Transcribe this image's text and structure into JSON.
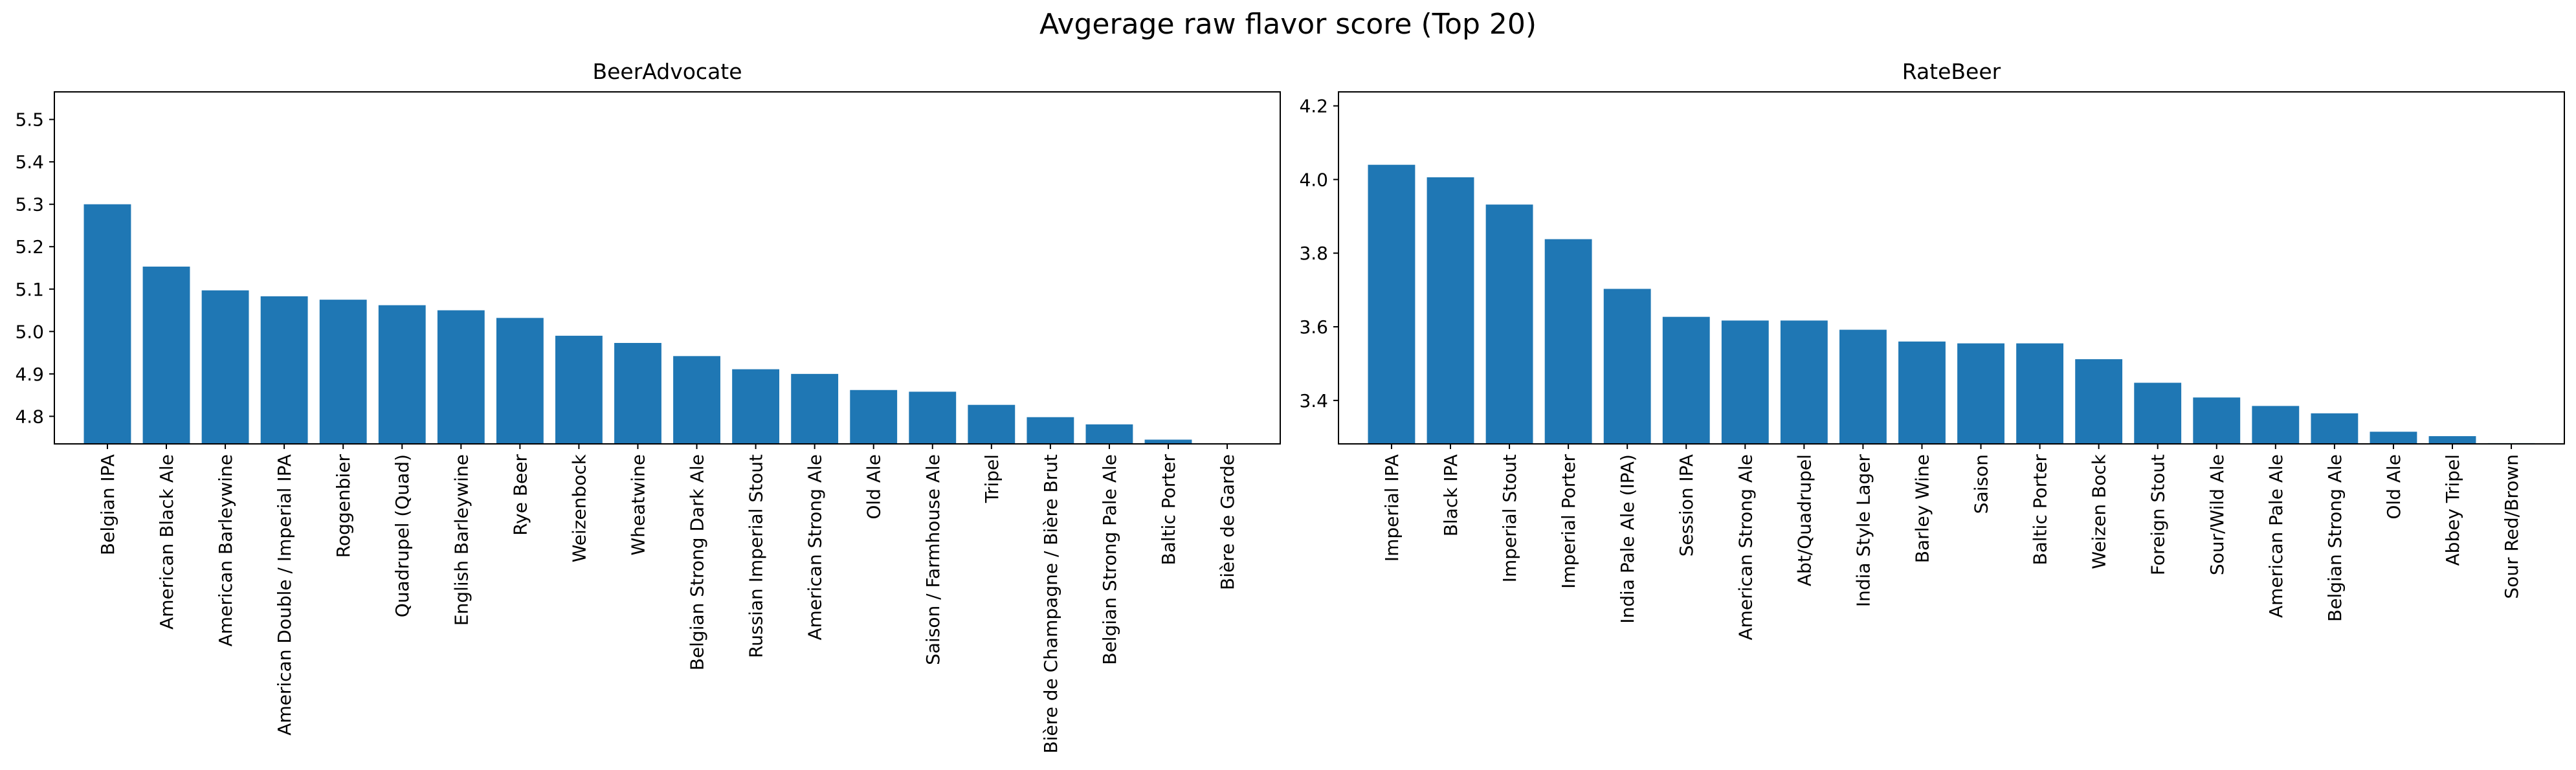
{
  "figure": {
    "title": "Avgerage raw flavor score (Top 20)"
  },
  "colors": {
    "bar": "#1f77b4",
    "axis": "#000000",
    "background": "#ffffff"
  },
  "chart_data": [
    {
      "type": "bar",
      "title": "BeerAdvocate",
      "xlabel": "",
      "ylabel": "",
      "ylim": [
        4.735,
        5.565
      ],
      "yticks": [
        "4.8",
        "4.9",
        "5.0",
        "5.1",
        "5.2",
        "5.3",
        "5.4",
        "5.5"
      ],
      "grid": false,
      "categories": [
        "Belgian IPA",
        "American Black Ale",
        "American Barleywine",
        "American Double / Imperial IPA",
        "Roggenbier",
        "Quadrupel (Quad)",
        "English Barleywine",
        "Rye Beer",
        "Weizenbock",
        "Wheatwine",
        "Belgian Strong Dark Ale",
        "Russian Imperial Stout",
        "American Strong Ale",
        "Old Ale",
        "Saison / Farmhouse Ale",
        "Tripel",
        "Bière de Champagne / Bière Brut",
        "Belgian Strong Pale Ale",
        "Baltic Porter",
        "Bière de Garde"
      ],
      "values": [
        5.3,
        5.153,
        5.097,
        5.083,
        5.075,
        5.062,
        5.05,
        5.032,
        4.99,
        4.973,
        4.942,
        4.911,
        4.9,
        4.862,
        4.858,
        4.827,
        4.798,
        4.781,
        4.745,
        4.735
      ]
    },
    {
      "type": "bar",
      "title": "RateBeer",
      "xlabel": "",
      "ylabel": "",
      "ylim": [
        3.282,
        4.238
      ],
      "yticks": [
        "3.4",
        "3.6",
        "3.8",
        "4.0",
        "4.2"
      ],
      "grid": false,
      "categories": [
        "Imperial IPA",
        "Black IPA",
        "Imperial Stout",
        "Imperial Porter",
        "India Pale Ale (IPA)",
        "Session IPA",
        "American Strong Ale",
        "Abt/Quadrupel",
        "India Style Lager",
        "Barley Wine",
        "Saison",
        "Baltic Porter",
        "Weizen Bock",
        "Foreign Stout",
        "Sour/Wild Ale",
        "American Pale Ale",
        "Belgian Strong Ale",
        "Old Ale",
        "Abbey Tripel",
        "Sour Red/Brown"
      ],
      "values": [
        4.04,
        4.006,
        3.932,
        3.838,
        3.703,
        3.627,
        3.617,
        3.617,
        3.592,
        3.56,
        3.555,
        3.555,
        3.512,
        3.448,
        3.408,
        3.385,
        3.365,
        3.315,
        3.303,
        3.284
      ]
    }
  ]
}
